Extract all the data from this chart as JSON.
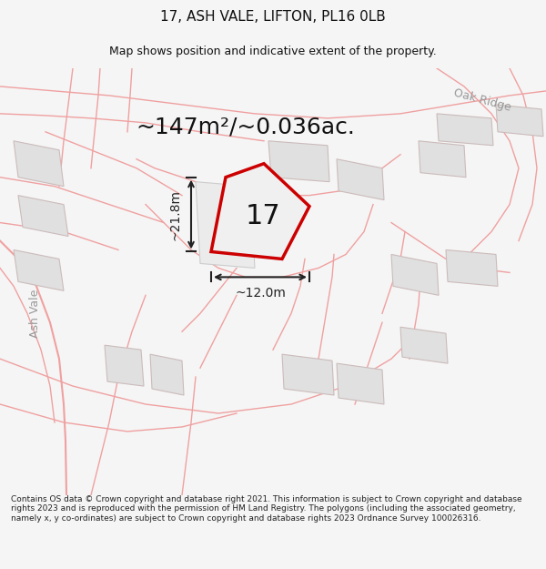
{
  "title": "17, ASH VALE, LIFTON, PL16 0LB",
  "subtitle": "Map shows position and indicative extent of the property.",
  "area_text": "~147m²/~0.036ac.",
  "label_17": "17",
  "dim_height": "~21.8m",
  "dim_width": "~12.0m",
  "oak_ridge_label": "Oak Ridge",
  "ash_vale_label": "Ash Vale",
  "footer": "Contains OS data © Crown copyright and database right 2021. This information is subject to Crown copyright and database rights 2023 and is reproduced with the permission of HM Land Registry. The polygons (including the associated geometry, namely x, y co-ordinates) are subject to Crown copyright and database rights 2023 Ordnance Survey 100026316.",
  "bg_color": "#f5f5f5",
  "map_bg": "#ffffff",
  "plot_color_red": "#cc0000",
  "road_color": "#f0a0a0",
  "building_color": "#e0e0e0",
  "building_edge": "#ccbbbb",
  "dim_color": "#222222",
  "text_color": "#111111",
  "footer_color": "#222222",
  "header_color": "#111111"
}
